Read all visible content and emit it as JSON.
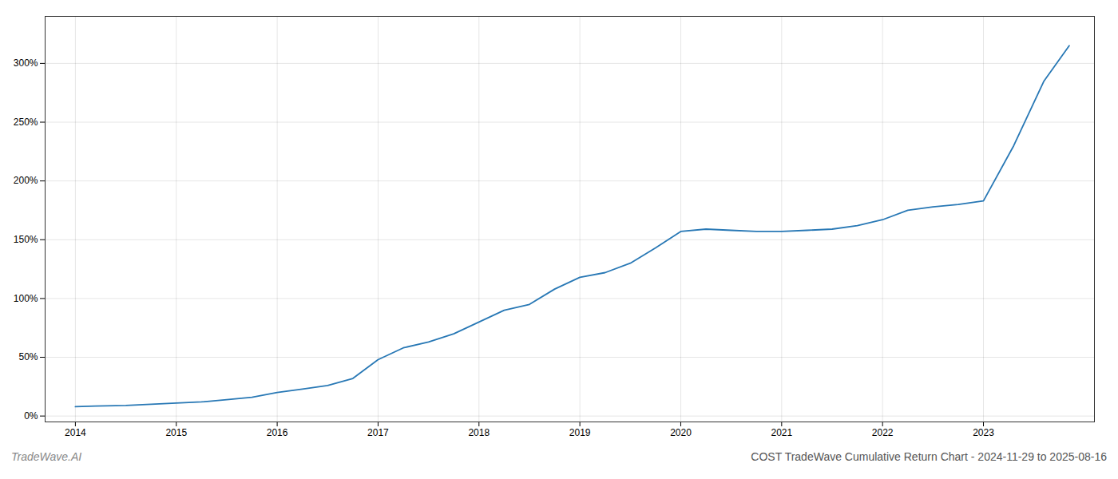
{
  "chart_data": {
    "type": "line",
    "title": "COST TradeWave Cumulative Return Chart - 2024-11-29 to 2025-08-16",
    "annotations": [
      "TradeWave.AI"
    ],
    "x": [
      2014.0,
      2014.2,
      2014.5,
      2014.75,
      2015.0,
      2015.25,
      2015.5,
      2015.75,
      2016.0,
      2016.25,
      2016.5,
      2016.75,
      2017.0,
      2017.25,
      2017.5,
      2017.75,
      2018.0,
      2018.25,
      2018.5,
      2018.75,
      2019.0,
      2019.25,
      2019.5,
      2019.75,
      2020.0,
      2020.25,
      2020.5,
      2020.75,
      2021.0,
      2021.25,
      2021.5,
      2021.75,
      2022.0,
      2022.25,
      2022.5,
      2022.75,
      2023.0,
      2023.3,
      2023.6,
      2023.85
    ],
    "values": [
      8,
      8.5,
      9,
      10,
      11,
      12,
      14,
      16,
      20,
      23,
      26,
      32,
      48,
      58,
      63,
      70,
      80,
      90,
      95,
      108,
      118,
      122,
      130,
      143,
      157,
      159,
      158,
      157,
      157,
      158,
      159,
      162,
      167,
      175,
      178,
      180,
      183,
      230,
      285,
      315
    ],
    "color": "#2878b5",
    "xlim": [
      2013.7,
      2024.1
    ],
    "ylim": [
      -5,
      340
    ],
    "xticks": [
      2014,
      2015,
      2016,
      2017,
      2018,
      2019,
      2020,
      2021,
      2022,
      2023
    ],
    "yticks": [
      {
        "value": 0,
        "label": "0%"
      },
      {
        "value": 50,
        "label": "50%"
      },
      {
        "value": 100,
        "label": "100%"
      },
      {
        "value": 150,
        "label": "150%"
      },
      {
        "value": 200,
        "label": "200%"
      },
      {
        "value": 250,
        "label": "250%"
      },
      {
        "value": 300,
        "label": "300%"
      }
    ],
    "grid": true
  }
}
